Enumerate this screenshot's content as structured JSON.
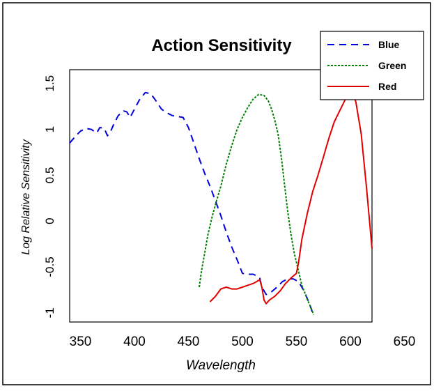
{
  "chart_data": {
    "type": "line",
    "title": "Action Sensitivity",
    "xlabel": "Wavelength",
    "ylabel": "Log Relative Sensitivity",
    "xlim": [
      340,
      620
    ],
    "ylim": [
      -1.1,
      1.65
    ],
    "x_ticks": [
      350,
      400,
      450,
      500,
      550,
      600,
      650
    ],
    "y_ticks": [
      -1,
      -0.5,
      0,
      0.5,
      1,
      1.5
    ],
    "x_tick_labels": [
      "350",
      "400",
      "450",
      "500",
      "550",
      "600",
      "650"
    ],
    "y_tick_labels": [
      "-1",
      "-0.5",
      "0",
      "0.5",
      "1",
      "1.5"
    ],
    "legend": {
      "placement": "top-right",
      "entries": [
        "Blue",
        "Green",
        "Red"
      ]
    },
    "series": [
      {
        "name": "Blue",
        "color": "#0000dd",
        "dash": "dashed",
        "x": [
          340,
          345,
          350,
          355,
          360,
          365,
          368,
          372,
          375,
          378,
          381,
          385,
          390,
          393,
          396,
          400,
          405,
          410,
          415,
          420,
          425,
          430,
          435,
          440,
          445,
          450,
          455,
          460,
          465,
          470,
          475,
          480,
          485,
          490,
          495,
          500,
          505,
          510,
          514,
          516,
          518,
          522,
          527,
          532,
          537,
          542,
          547,
          552,
          557,
          562,
          565
        ],
        "y": [
          0.85,
          0.92,
          0.98,
          1.01,
          1.0,
          0.96,
          1.02,
          1.01,
          0.93,
          0.98,
          1.06,
          1.15,
          1.2,
          1.19,
          1.13,
          1.22,
          1.33,
          1.4,
          1.39,
          1.31,
          1.22,
          1.18,
          1.15,
          1.14,
          1.13,
          1.02,
          0.85,
          0.68,
          0.52,
          0.38,
          0.22,
          0.06,
          -0.12,
          -0.28,
          -0.42,
          -0.57,
          -0.58,
          -0.58,
          -0.6,
          -0.62,
          -0.72,
          -0.8,
          -0.77,
          -0.72,
          -0.66,
          -0.63,
          -0.63,
          -0.66,
          -0.76,
          -0.9,
          -1.0
        ]
      },
      {
        "name": "Green",
        "color": "#008000",
        "dash": "dotted",
        "x": [
          460,
          462,
          465,
          468,
          472,
          476,
          480,
          485,
          490,
          495,
          500,
          505,
          510,
          515,
          520,
          524,
          527,
          530,
          533,
          536,
          539,
          542,
          545,
          548,
          551,
          555,
          560,
          564,
          566
        ],
        "y": [
          -0.72,
          -0.55,
          -0.35,
          -0.15,
          0.05,
          0.22,
          0.38,
          0.62,
          0.82,
          1.0,
          1.13,
          1.24,
          1.33,
          1.38,
          1.37,
          1.31,
          1.22,
          1.1,
          0.95,
          0.7,
          0.4,
          0.1,
          -0.15,
          -0.35,
          -0.5,
          -0.7,
          -0.85,
          -0.96,
          -1.02
        ]
      },
      {
        "name": "Red",
        "color": "#e00000",
        "dash": "solid",
        "x": [
          470,
          475,
          480,
          485,
          490,
          495,
          500,
          505,
          510,
          513,
          516,
          518,
          520,
          522,
          525,
          530,
          535,
          540,
          545,
          550,
          552,
          555,
          560,
          565,
          570,
          575,
          580,
          585,
          590,
          595,
          600,
          605,
          610,
          615,
          620
        ],
        "y": [
          -0.88,
          -0.82,
          -0.74,
          -0.72,
          -0.74,
          -0.74,
          -0.72,
          -0.7,
          -0.68,
          -0.66,
          -0.64,
          -0.72,
          -0.86,
          -0.9,
          -0.86,
          -0.82,
          -0.76,
          -0.68,
          -0.62,
          -0.57,
          -0.45,
          -0.2,
          0.08,
          0.32,
          0.5,
          0.7,
          0.9,
          1.08,
          1.2,
          1.32,
          1.45,
          1.3,
          0.95,
          0.35,
          -0.3
        ]
      }
    ]
  }
}
